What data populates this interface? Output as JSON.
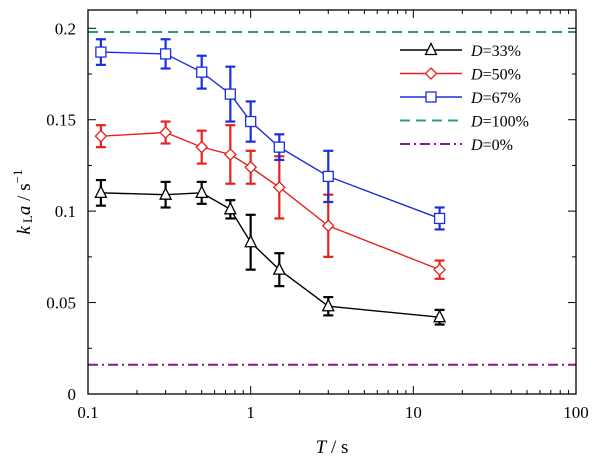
{
  "chart_data": {
    "type": "line",
    "xscale": "log",
    "xlim": [
      0.1,
      100
    ],
    "ylim": [
      0,
      0.21
    ],
    "xticks": [
      0.1,
      1,
      10,
      100
    ],
    "xtick_labels": [
      "0.1",
      "1",
      "10",
      "100"
    ],
    "yticks": [
      0,
      0.05,
      0.1,
      0.15,
      0.2
    ],
    "ytick_labels": [
      "0",
      "0.05",
      "0.1",
      "0.15",
      "0.2"
    ],
    "xlabel": {
      "var": "T",
      "unit": " / s"
    },
    "ylabel": {
      "var": "k",
      "sub": "L",
      "var2": "a",
      "unit": " / s",
      "sup": "−1"
    },
    "legend_position": "top-right",
    "grid": false,
    "series": [
      {
        "name": "D=33%",
        "name_var": "D",
        "name_rest": "=33%",
        "color": "#000000",
        "marker": "triangle",
        "dash": "solid",
        "x": [
          0.12,
          0.3,
          0.5,
          0.75,
          1.0,
          1.5,
          3.0,
          14.5
        ],
        "y": [
          0.11,
          0.109,
          0.11,
          0.101,
          0.083,
          0.068,
          0.048,
          0.042
        ],
        "err": [
          0.007,
          0.007,
          0.006,
          0.005,
          0.015,
          0.009,
          0.005,
          0.004
        ]
      },
      {
        "name": "D=50%",
        "name_var": "D",
        "name_rest": "=50%",
        "color": "#e8211c",
        "marker": "diamond",
        "dash": "solid",
        "x": [
          0.12,
          0.3,
          0.5,
          0.75,
          1.0,
          1.5,
          3.0,
          14.5
        ],
        "y": [
          0.141,
          0.143,
          0.135,
          0.131,
          0.124,
          0.113,
          0.092,
          0.068
        ],
        "err": [
          0.006,
          0.006,
          0.009,
          0.016,
          0.009,
          0.017,
          0.017,
          0.005
        ]
      },
      {
        "name": "D=67%",
        "name_var": "D",
        "name_rest": "=67%",
        "color": "#1a2fe0",
        "marker": "square",
        "dash": "solid",
        "x": [
          0.12,
          0.3,
          0.5,
          0.75,
          1.0,
          1.5,
          3.0,
          14.5
        ],
        "y": [
          0.187,
          0.186,
          0.176,
          0.164,
          0.149,
          0.135,
          0.119,
          0.096
        ],
        "err": [
          0.007,
          0.008,
          0.009,
          0.015,
          0.011,
          0.007,
          0.014,
          0.006
        ]
      },
      {
        "name": "D=100%",
        "name_var": "D",
        "name_rest": "=100%",
        "color": "#2aa064",
        "marker": "none",
        "dash": "dashed",
        "x": [
          0.1,
          100
        ],
        "y": [
          0.198,
          0.198
        ]
      },
      {
        "name": "D=0%",
        "name_var": "D",
        "name_rest": "=0%",
        "color": "#8b1a8b",
        "marker": "none",
        "dash": "dashdot",
        "x": [
          0.1,
          100
        ],
        "y": [
          0.016,
          0.016
        ]
      }
    ]
  }
}
